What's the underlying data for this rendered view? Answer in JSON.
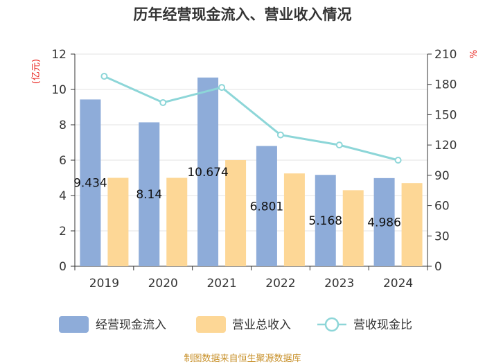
{
  "chart_data": {
    "type": "bar",
    "title": "历年经营现金流入、营业收入情况",
    "categories": [
      "2019",
      "2020",
      "2021",
      "2022",
      "2023",
      "2024"
    ],
    "series": [
      {
        "name": "经营现金流入",
        "type": "bar",
        "axis": "left",
        "color": "#8eacd9",
        "values": [
          9.434,
          8.14,
          10.674,
          6.801,
          5.168,
          4.986
        ],
        "labels": [
          "9.434",
          "8.14",
          "10.674",
          "6.801",
          "5.168",
          "4.986"
        ]
      },
      {
        "name": "营业总收入",
        "type": "bar",
        "axis": "left",
        "color": "#fdd796",
        "values": [
          5.0,
          5.0,
          6.0,
          5.25,
          4.3,
          4.7
        ]
      },
      {
        "name": "营收现金比",
        "type": "line",
        "axis": "right",
        "color": "#8dd6d8",
        "values": [
          188,
          162,
          177,
          130,
          120,
          105
        ]
      }
    ],
    "y_left": {
      "unit": "亿元",
      "ylim": [
        0,
        12
      ],
      "ticks": [
        "0",
        "2",
        "4",
        "6",
        "8",
        "10",
        "12"
      ]
    },
    "y_right": {
      "unit": "%",
      "ylim": [
        0,
        210
      ],
      "ticks": [
        "0",
        "30",
        "60",
        "90",
        "120",
        "150",
        "180",
        "210"
      ]
    },
    "grid": true,
    "legend": "bottom"
  },
  "footer": {
    "source": "制图数据来自恒生聚源数据库"
  }
}
